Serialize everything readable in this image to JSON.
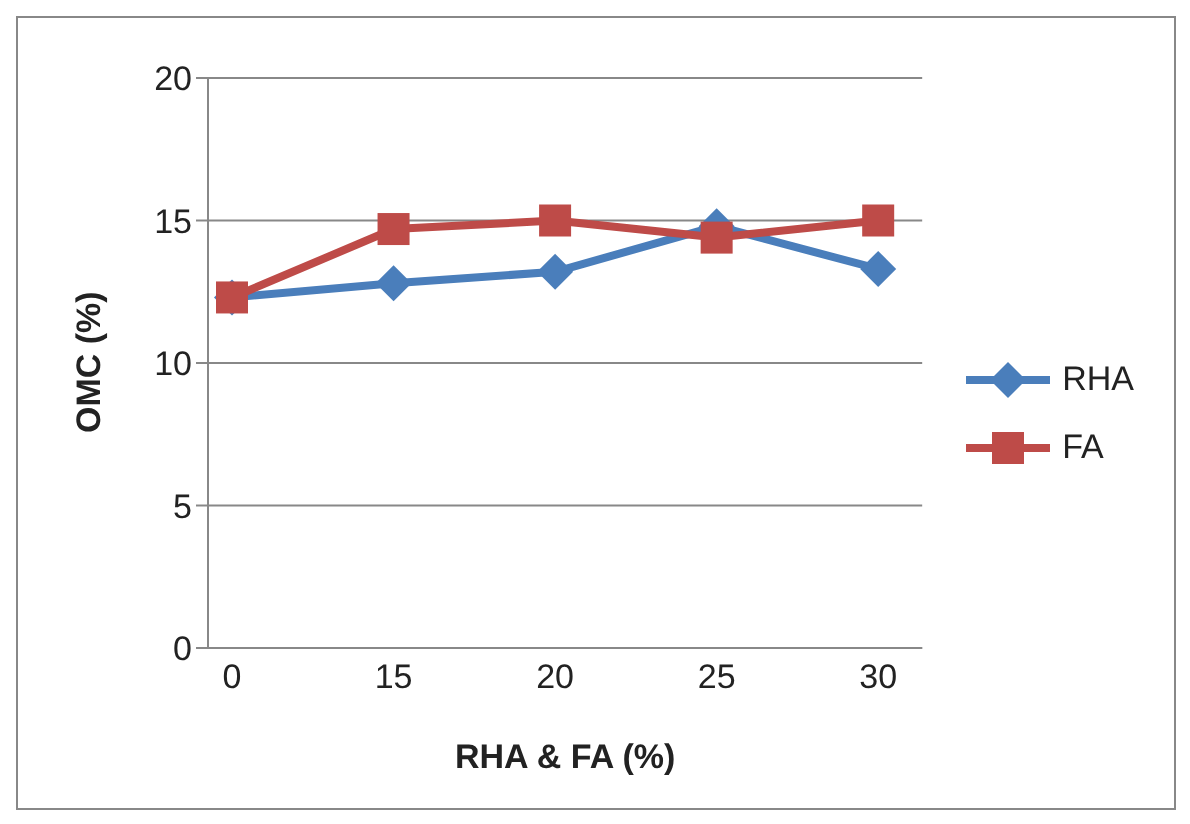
{
  "chart_data": {
    "type": "line",
    "xlabel": "RHA & FA (%)",
    "ylabel": "OMC (%)",
    "categories": [
      "0",
      "15",
      "20",
      "25",
      "30"
    ],
    "series": [
      {
        "name": "RHA",
        "color": "#4a7ebb",
        "values": [
          12.3,
          12.8,
          13.2,
          14.8,
          13.3
        ],
        "marker": "diamond"
      },
      {
        "name": "FA",
        "color": "#be4b48",
        "values": [
          12.3,
          14.7,
          15.0,
          14.4,
          15.0
        ],
        "marker": "square"
      }
    ],
    "ylim": [
      0,
      20
    ],
    "yticks": [
      0,
      5,
      10,
      15,
      20
    ],
    "grid": "y",
    "legend": "right"
  }
}
